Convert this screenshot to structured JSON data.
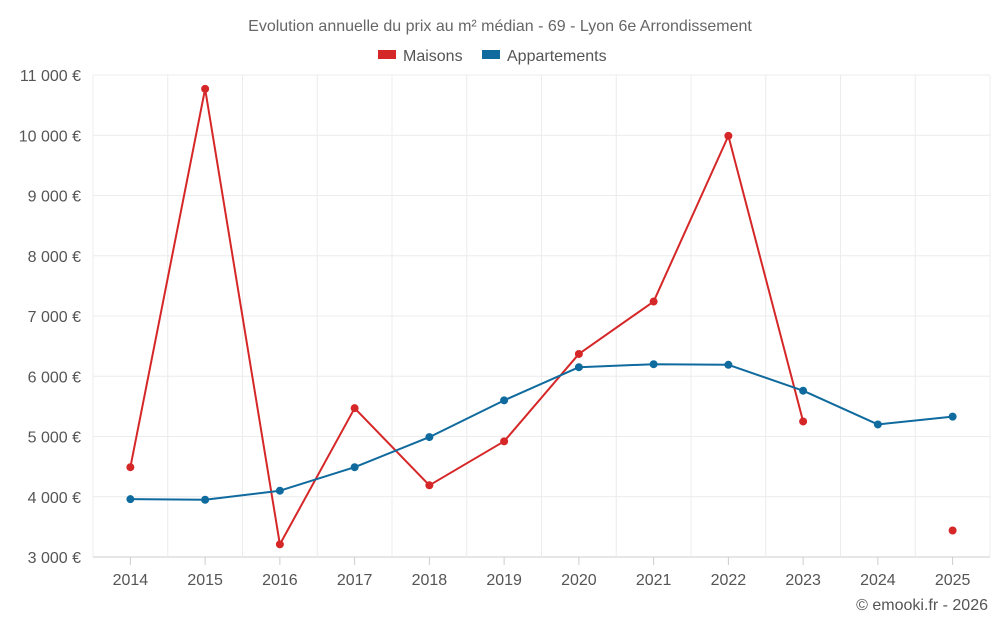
{
  "chart_data": {
    "type": "line",
    "title": "Evolution annuelle du prix au m² médian - 69 - Lyon 6e Arrondissement",
    "categories": [
      "2014",
      "2015",
      "2016",
      "2017",
      "2018",
      "2019",
      "2020",
      "2021",
      "2022",
      "2023",
      "2024",
      "2025"
    ],
    "y_ticks": [
      3000,
      4000,
      5000,
      6000,
      7000,
      8000,
      9000,
      10000,
      11000
    ],
    "y_tick_labels": [
      "3 000 €",
      "4 000 €",
      "5 000 €",
      "6 000 €",
      "7 000 €",
      "8 000 €",
      "9 000 €",
      "10 000 €",
      "11 000 €"
    ],
    "ylim": [
      3000,
      11000
    ],
    "grid": true,
    "legend_position": "top-center",
    "series": [
      {
        "name": "Maisons",
        "color": "#d62728",
        "values": [
          4490,
          10770,
          3210,
          5470,
          4190,
          4920,
          6370,
          7240,
          9990,
          5250,
          null,
          3440
        ]
      },
      {
        "name": "Appartements",
        "color": "#0f6a9e",
        "values": [
          3960,
          3950,
          4100,
          4490,
          4990,
          5600,
          6150,
          6200,
          6190,
          5760,
          5200,
          5330
        ]
      }
    ],
    "credit": "© emooki.fr - 2026"
  }
}
